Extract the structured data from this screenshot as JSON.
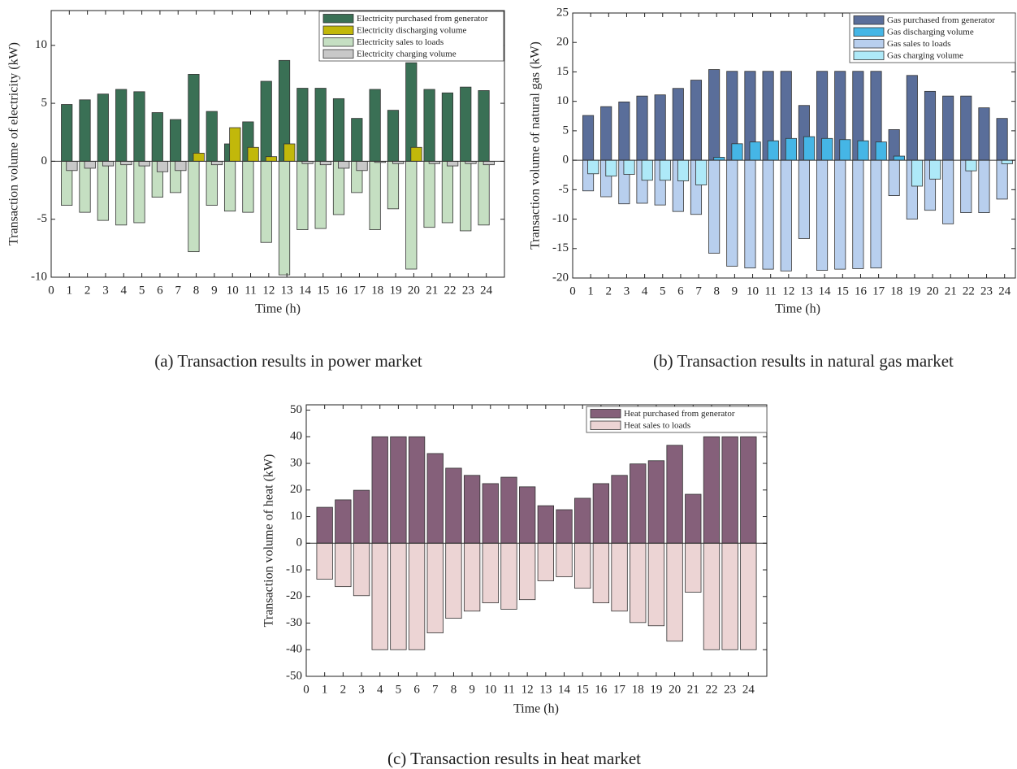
{
  "chart_data": [
    {
      "type": "bar",
      "barmode": "group",
      "caption": "(a) Transaction results in power market",
      "xlabel": "Time (h)",
      "ylabel": "Transaction volume of electricity (kW)",
      "x": [
        1,
        2,
        3,
        4,
        5,
        6,
        7,
        8,
        9,
        10,
        11,
        12,
        13,
        14,
        15,
        16,
        17,
        18,
        19,
        20,
        21,
        22,
        23,
        24
      ],
      "xlim": [
        0,
        25
      ],
      "xticks": [
        0,
        1,
        2,
        3,
        4,
        5,
        6,
        7,
        8,
        9,
        10,
        11,
        12,
        13,
        14,
        15,
        16,
        17,
        18,
        19,
        20,
        21,
        22,
        23,
        24
      ],
      "ylim": [
        -10,
        13
      ],
      "yticks": [
        -10,
        -5,
        0,
        5,
        10
      ],
      "legend": "upper right",
      "grid": false,
      "series": [
        {
          "name": "Electricity purchased from generator",
          "color": "#3a7055",
          "values": [
            4.9,
            5.3,
            5.8,
            6.2,
            6.0,
            4.2,
            3.6,
            7.5,
            4.3,
            1.5,
            3.4,
            6.9,
            8.7,
            6.3,
            6.3,
            5.4,
            3.7,
            6.2,
            4.4,
            8.5,
            6.2,
            5.9,
            6.4,
            6.1
          ]
        },
        {
          "name": "Electricity discharging volume",
          "color": "#c2b80a",
          "values": [
            0,
            0,
            0,
            0,
            0,
            0,
            0,
            0.7,
            0,
            2.9,
            1.2,
            0.4,
            1.5,
            0,
            0,
            0,
            0,
            0,
            0,
            1.2,
            0,
            0,
            0,
            0
          ]
        },
        {
          "name": "Electricity sales to loads",
          "color": "#c5dfc2",
          "values": [
            -3.8,
            -4.4,
            -5.1,
            -5.5,
            -5.3,
            -3.1,
            -2.7,
            -7.8,
            -3.8,
            -4.3,
            -4.4,
            -7.0,
            -9.8,
            -5.9,
            -5.8,
            -4.6,
            -2.7,
            -5.9,
            -4.1,
            -9.3,
            -5.7,
            -5.3,
            -6.0,
            -5.5
          ]
        },
        {
          "name": "Electricity charging volume",
          "color": "#c8c8c8",
          "values": [
            -0.8,
            -0.6,
            -0.4,
            -0.3,
            -0.4,
            -0.9,
            -0.8,
            0,
            -0.3,
            0,
            0,
            0,
            0,
            -0.2,
            -0.3,
            -0.6,
            -0.8,
            -0.1,
            -0.2,
            0,
            -0.2,
            -0.4,
            -0.2,
            -0.3
          ]
        }
      ]
    },
    {
      "type": "bar",
      "barmode": "group",
      "caption": "(b) Transaction results in natural gas market",
      "xlabel": "Time (h)",
      "ylabel": "Transaction volume of natural gas (kW)",
      "x": [
        1,
        2,
        3,
        4,
        5,
        6,
        7,
        8,
        9,
        10,
        11,
        12,
        13,
        14,
        15,
        16,
        17,
        18,
        19,
        20,
        21,
        22,
        23,
        24
      ],
      "xlim": [
        0,
        24.6
      ],
      "xticks": [
        0,
        1,
        2,
        3,
        4,
        5,
        6,
        7,
        8,
        9,
        10,
        11,
        12,
        13,
        14,
        15,
        16,
        17,
        18,
        19,
        20,
        21,
        22,
        23,
        24
      ],
      "ylim": [
        -20,
        25
      ],
      "yticks": [
        -20,
        -15,
        -10,
        -5,
        0,
        5,
        10,
        15,
        20,
        25
      ],
      "legend": "upper right",
      "grid": false,
      "series": [
        {
          "name": "Gas purchased from generator",
          "color": "#5a6e9a",
          "values": [
            7.6,
            9.1,
            9.9,
            10.9,
            11.1,
            12.2,
            13.6,
            15.4,
            15.1,
            15.1,
            15.1,
            15.1,
            9.3,
            15.1,
            15.1,
            15.1,
            15.1,
            5.2,
            14.4,
            11.7,
            10.9,
            10.9,
            8.9,
            7.1
          ]
        },
        {
          "name": "Gas discharging volume",
          "color": "#45b6e6",
          "values": [
            0,
            0,
            0,
            0,
            0,
            0,
            0,
            0.5,
            2.8,
            3.1,
            3.3,
            3.7,
            4.0,
            3.7,
            3.5,
            3.3,
            3.1,
            0.7,
            0,
            0,
            0,
            0,
            0,
            0
          ]
        },
        {
          "name": "Gas sales to loads",
          "color": "#b8cfee",
          "values": [
            -5.2,
            -6.2,
            -7.4,
            -7.3,
            -7.6,
            -8.7,
            -9.2,
            -15.8,
            -18.0,
            -18.3,
            -18.5,
            -18.8,
            -13.3,
            -18.7,
            -18.5,
            -18.4,
            -18.3,
            -6.0,
            -10.0,
            -8.5,
            -10.8,
            -8.9,
            -8.9,
            -6.6
          ]
        },
        {
          "name": "Gas charging volume",
          "color": "#aee9f8",
          "values": [
            -2.3,
            -2.7,
            -2.4,
            -3.4,
            -3.4,
            -3.5,
            -4.2,
            0,
            0,
            0,
            0,
            0,
            0,
            0,
            0,
            0,
            0,
            0,
            -4.4,
            -3.2,
            0,
            -1.8,
            0,
            -0.6
          ]
        }
      ]
    },
    {
      "type": "bar",
      "barmode": "overlay",
      "caption": "(c) Transaction results in heat market",
      "xlabel": "Time (h)",
      "ylabel": "Transaction volume of heat (kW)",
      "x": [
        1,
        2,
        3,
        4,
        5,
        6,
        7,
        8,
        9,
        10,
        11,
        12,
        13,
        14,
        15,
        16,
        17,
        18,
        19,
        20,
        21,
        22,
        23,
        24
      ],
      "xlim": [
        0,
        25
      ],
      "xticks": [
        0,
        1,
        2,
        3,
        4,
        5,
        6,
        7,
        8,
        9,
        10,
        11,
        12,
        13,
        14,
        15,
        16,
        17,
        18,
        19,
        20,
        21,
        22,
        23,
        24
      ],
      "ylim": [
        -50,
        52
      ],
      "yticks": [
        -50,
        -40,
        -30,
        -20,
        -10,
        0,
        10,
        20,
        30,
        40,
        50
      ],
      "legend": "upper right",
      "grid": false,
      "series": [
        {
          "name": "Heat purchased from generator",
          "color": "#85607a",
          "values": [
            13.5,
            16.3,
            19.9,
            40,
            40,
            40,
            33.7,
            28.2,
            25.5,
            22.4,
            24.8,
            21.2,
            14.1,
            12.6,
            16.9,
            22.4,
            25.5,
            29.8,
            31.0,
            36.8,
            18.4,
            40,
            40,
            40
          ]
        },
        {
          "name": "Heat sales to loads",
          "color": "#ecd4d4",
          "values": [
            -13.5,
            -16.3,
            -19.7,
            -40,
            -40,
            -40,
            -33.7,
            -28.2,
            -25.5,
            -22.4,
            -24.8,
            -21.2,
            -14.1,
            -12.6,
            -16.9,
            -22.4,
            -25.5,
            -29.8,
            -31.0,
            -36.8,
            -18.4,
            -40,
            -40,
            -40
          ]
        }
      ]
    }
  ]
}
